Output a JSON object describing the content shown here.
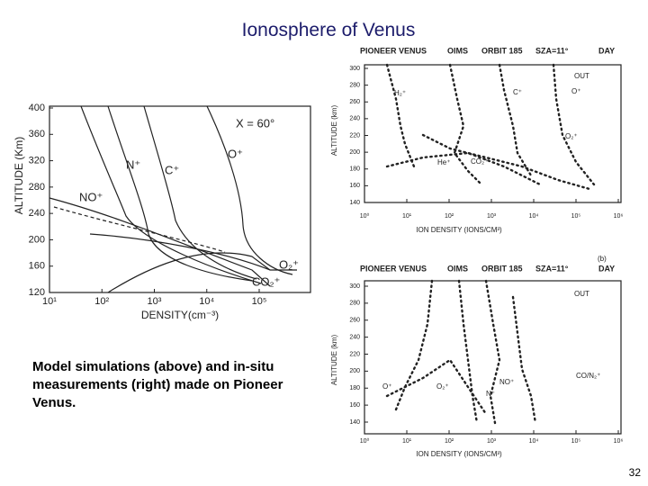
{
  "slide": {
    "title": "Ionosphere of Venus",
    "caption": "Model simulations (above) and in-situ measurements (right) made on Pioneer Venus.",
    "page_number": "32"
  },
  "figure_model": {
    "y_label": "ALTITUDE (Km)",
    "x_label": "DENSITY(cm⁻³)",
    "yticks": [
      "400",
      "360",
      "320",
      "280",
      "240",
      "200",
      "160",
      "120"
    ],
    "xticks": [
      "10¹",
      "10²",
      "10³",
      "10⁴",
      "10⁵"
    ],
    "annotation": "X = 60°",
    "species": [
      "NO⁺",
      "N⁺",
      "C⁺",
      "O⁺",
      "O₂⁺",
      "CO₂⁺"
    ]
  },
  "figure_top": {
    "header": [
      "PIONEER VENUS",
      "OIMS",
      "ORBIT 185",
      "SZA=11°",
      "DAY"
    ],
    "marker": "OUT",
    "y_label": "ALTITUDE (km)",
    "yticks": [
      "300",
      "280",
      "260",
      "240",
      "220",
      "200",
      "180",
      "160",
      "140"
    ],
    "xticks": [
      "10⁰",
      "10¹",
      "10²",
      "10³",
      "10⁴",
      "10⁵",
      "10⁶"
    ],
    "x_label": "ION DENSITY (IONS/CM³)",
    "species": [
      "H₂⁺",
      "C⁺",
      "O⁺",
      "O₂⁺",
      "He⁺",
      "CO₂⁺"
    ]
  },
  "figure_bottom": {
    "panel": "(b)",
    "header": [
      "PIONEER VENUS",
      "OIMS",
      "ORBIT 185",
      "SZA=11°",
      "DAY"
    ],
    "marker": "OUT",
    "y_label": "ALTITUDE (km)",
    "yticks": [
      "300",
      "280",
      "260",
      "240",
      "220",
      "200",
      "180",
      "160",
      "140"
    ],
    "xticks": [
      "10⁰",
      "10¹",
      "10²",
      "10³",
      "10⁴",
      "10⁵",
      "10⁶"
    ],
    "x_label": "ION DENSITY (IONS/CM³)",
    "species": [
      "CO/N₂⁺",
      "O⁺",
      "O₂⁺",
      "NO⁺",
      "N⁺"
    ]
  }
}
